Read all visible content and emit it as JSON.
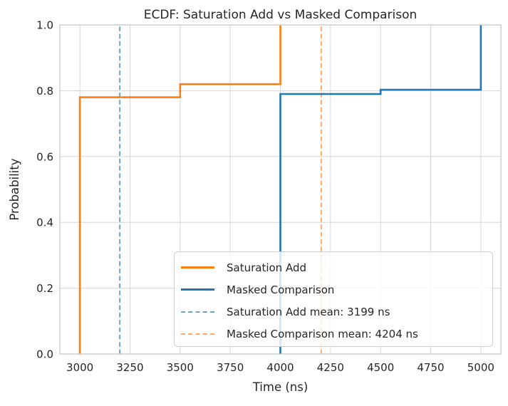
{
  "chart_data": {
    "type": "line",
    "subtype": "ecdf_step",
    "title": "ECDF: Saturation Add vs Masked Comparison",
    "xlabel": "Time (ns)",
    "ylabel": "Probability",
    "xlim": [
      2900,
      5100
    ],
    "ylim": [
      0,
      1
    ],
    "x_ticks": [
      3000,
      3250,
      3500,
      3750,
      4000,
      4250,
      4500,
      4750,
      5000
    ],
    "x_tick_labels": [
      "3000",
      "3250",
      "3500",
      "3750",
      "4000",
      "4250",
      "4500",
      "4750",
      "5000"
    ],
    "y_ticks": [
      0.0,
      0.2,
      0.4,
      0.6,
      0.8,
      1.0
    ],
    "y_tick_labels": [
      "0.0",
      "0.2",
      "0.4",
      "0.6",
      "0.8",
      "1.0"
    ],
    "grid": true,
    "legend_position": "lower-right-inside",
    "series": [
      {
        "name": "Saturation Add",
        "color": "#ff7f0e",
        "style": "solid",
        "points": [
          [
            3000,
            0.0
          ],
          [
            3000,
            0.78
          ],
          [
            3500,
            0.78
          ],
          [
            3500,
            0.82
          ],
          [
            4000,
            0.82
          ],
          [
            4000,
            1.0
          ]
        ]
      },
      {
        "name": "Masked Comparison",
        "color": "#1f77b4",
        "style": "solid",
        "points": [
          [
            4000,
            0.0
          ],
          [
            4000,
            0.79
          ],
          [
            4500,
            0.79
          ],
          [
            4500,
            0.803
          ],
          [
            5000,
            0.803
          ],
          [
            5000,
            1.0
          ]
        ]
      }
    ],
    "mean_lines": [
      {
        "label": "Saturation Add mean: 3199 ns",
        "x": 3199,
        "color": "#1f77b4",
        "style": "dashed",
        "alpha": 0.65
      },
      {
        "label": "Masked Comparison mean: 4204 ns",
        "x": 4204,
        "color": "#ff7f0e",
        "style": "dashed",
        "alpha": 0.65
      }
    ],
    "legend": {
      "items": [
        {
          "label": "Saturation Add",
          "color": "#ff7f0e",
          "style": "solid"
        },
        {
          "label": "Masked Comparison",
          "color": "#1f77b4",
          "style": "solid"
        },
        {
          "label": "Saturation Add mean: 3199 ns",
          "color": "#6ba3cc",
          "style": "dashed"
        },
        {
          "label": "Masked Comparison mean: 4204 ns",
          "color": "#ffa95e",
          "style": "dashed"
        }
      ]
    },
    "palette": {
      "orange": "#ff7f0e",
      "blue": "#1f77b4",
      "grid": "#d6d6d6",
      "spine": "#c6c6c6",
      "text": "#262626",
      "legend_border": "#cccccc",
      "legend_background": "rgba(255,255,255,0.8)"
    }
  }
}
